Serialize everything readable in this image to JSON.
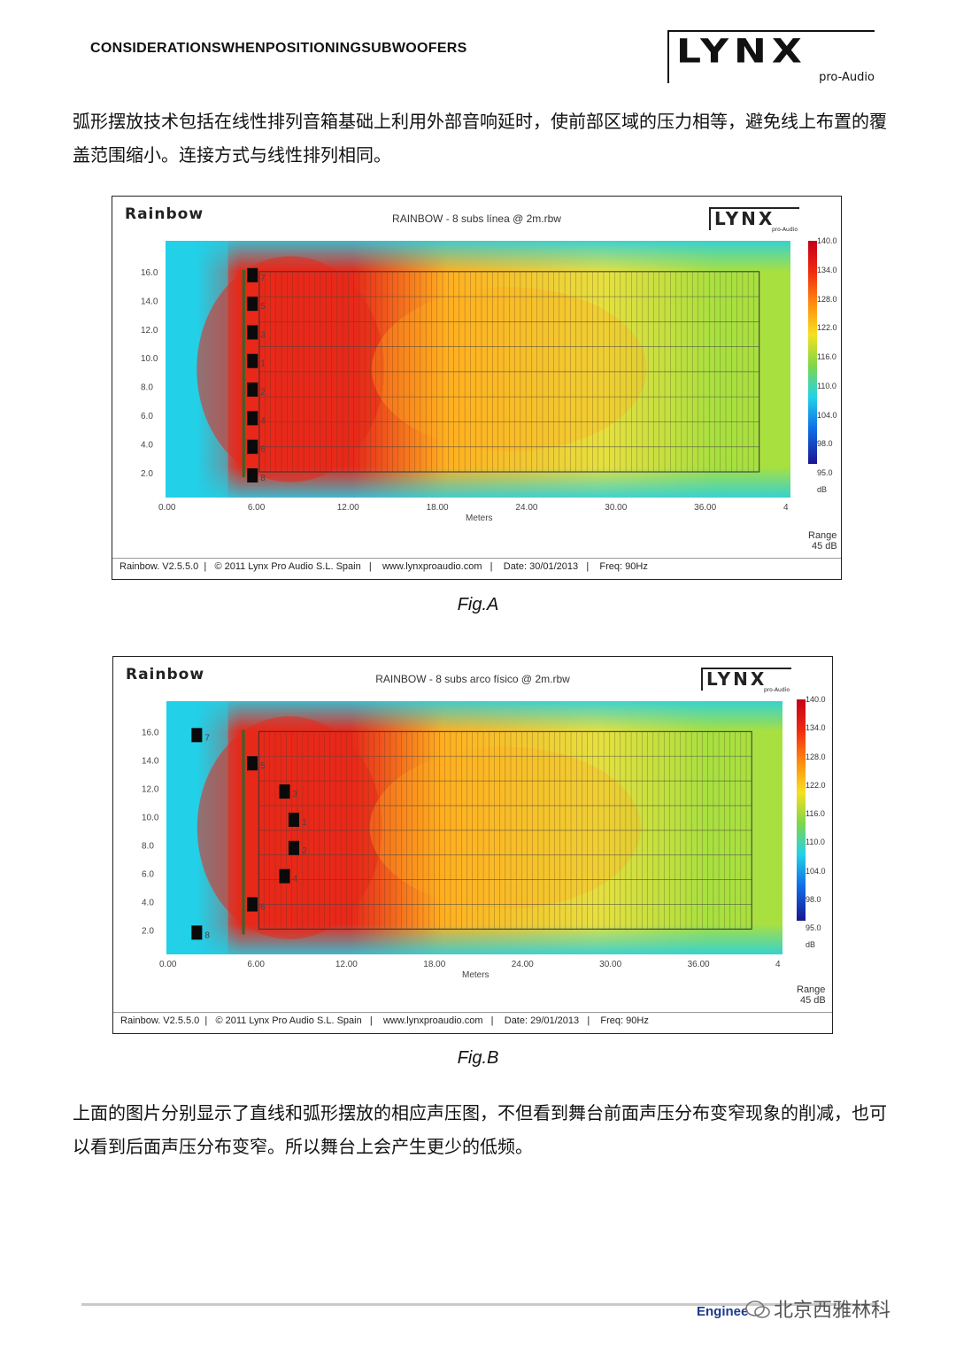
{
  "header": {
    "title": "CONSIDERATIONSWHENPOSITIONINGSUBWOOFERS",
    "logo_main": "LYNX",
    "logo_sub": "pro-Audio"
  },
  "intro_text": "弧形摆放技术包括在线性排列音箱基础上利用外部音响延时，使前部区域的压力相等，避免线上布置的覆盖范围缩小。连接方式与线性排列相同。",
  "figures": [
    {
      "app_logo": "Rainbow",
      "title": "RAINBOW - 8 subs línea @ 2m.rbw",
      "brand": "LYNX",
      "brand_sub": "pro-Audio",
      "y_ticks": [
        "16.0",
        "14.0",
        "12.0",
        "10.0",
        "8.0",
        "6.0",
        "4.0",
        "2.0"
      ],
      "x_ticks": [
        "0.00",
        "6.00",
        "12.00",
        "18.00",
        "24.00",
        "30.00",
        "36.00",
        "4"
      ],
      "x_label": "Meters",
      "legend_values": [
        "140.0",
        "134.0",
        "128.0",
        "122.0",
        "116.0",
        "110.0",
        "104.0",
        "98.0",
        "95.0"
      ],
      "legend_unit": "dB",
      "range_label": "Range",
      "range_value": "45 dB",
      "speaker_labels": [
        "7",
        "5",
        "3",
        "1",
        "2",
        "4",
        "6",
        "8"
      ],
      "speaker_offsets_m": [
        0,
        0,
        0,
        0,
        0,
        0,
        0,
        0
      ],
      "footer": {
        "version": "Rainbow.  V2.5.5.0",
        "copyright": "© 2011 Lynx Pro Audio S.L. Spain",
        "url": "www.lynxproaudio.com",
        "date": "Date: 30/01/2013",
        "freq": "Freq: 90Hz"
      },
      "caption": "Fig.A"
    },
    {
      "app_logo": "Rainbow",
      "title": "RAINBOW - 8 subs arco físico @ 2m.rbw",
      "brand": "LYNX",
      "brand_sub": "pro-Audio",
      "y_ticks": [
        "16.0",
        "14.0",
        "12.0",
        "10.0",
        "8.0",
        "6.0",
        "4.0",
        "2.0"
      ],
      "x_ticks": [
        "0.00",
        "6.00",
        "12.00",
        "18.00",
        "24.00",
        "30.00",
        "36.00",
        "4"
      ],
      "x_label": "Meters",
      "legend_values": [
        "140.0",
        "134.0",
        "128.0",
        "122.0",
        "116.0",
        "110.0",
        "104.0",
        "98.0",
        "95.0"
      ],
      "legend_unit": "dB",
      "range_label": "Range",
      "range_value": "45 dB",
      "speaker_labels": [
        "7",
        "5",
        "3",
        "1",
        "2",
        "4",
        "6",
        "8"
      ],
      "speaker_offsets_m": [
        -0.6,
        0.0,
        0.35,
        0.45,
        0.45,
        0.35,
        0.0,
        -0.6
      ],
      "footer": {
        "version": "Rainbow.  V2.5.5.0",
        "copyright": "© 2011 Lynx Pro Audio S.L. Spain",
        "url": "www.lynxproaudio.com",
        "date": "Date: 29/01/2013",
        "freq": "Freq: 90Hz"
      },
      "caption": "Fig.B"
    }
  ],
  "conclusion_text": "上面的图片分别显示了直线和弧形摆放的相应声压图，不但看到舞台前面声压分布变窄现象的削减，也可以看到后面声压分布变窄。所以舞台上会产生更少的低频。",
  "footer": {
    "engineering": "Enginee",
    "watermark": "北京西雅林科"
  },
  "colors": {
    "hot": "#e8281a",
    "warm": "#ffb020",
    "mid": "#a8e040",
    "cool": "#22d0e8",
    "cold": "#1a1690"
  }
}
